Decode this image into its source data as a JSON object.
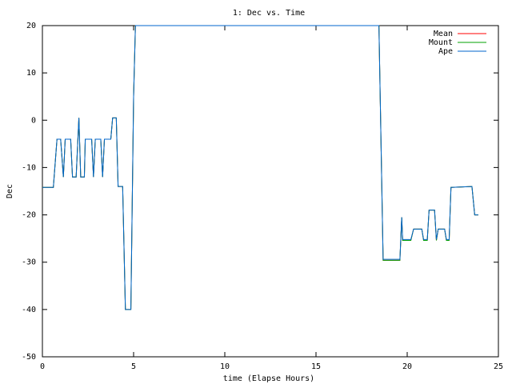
{
  "chart_data": {
    "type": "line",
    "title": "1: Dec vs. Time",
    "x_label": "time (Elapse Hours)",
    "y_label": "Dec",
    "x": [
      0,
      0.6,
      0.8,
      1.0,
      1.15,
      1.25,
      1.55,
      1.65,
      1.85,
      2.0,
      2.1,
      2.3,
      2.35,
      2.7,
      2.8,
      2.9,
      3.2,
      3.3,
      3.4,
      3.75,
      3.85,
      4.05,
      4.15,
      4.4,
      4.55,
      4.85,
      5.0,
      5.1,
      18.45,
      18.68,
      19.6,
      19.7,
      19.75,
      20.2,
      20.35,
      20.8,
      20.9,
      21.1,
      21.2,
      21.5,
      21.6,
      21.7,
      22.05,
      22.15,
      22.3,
      22.4,
      23.55,
      23.7,
      23.9
    ],
    "series": [
      {
        "name": "Mean",
        "color": "#ff0000",
        "values": [
          -14.2,
          -14.2,
          -4,
          -4,
          -12,
          -4,
          -4,
          -12,
          -12,
          0.5,
          -12,
          -12,
          -4,
          -4,
          -12,
          -4,
          -4,
          -12,
          -4,
          -4,
          0.5,
          0.5,
          -14,
          -14,
          -40,
          -40,
          5,
          20,
          20,
          -29.6,
          -29.6,
          -20.5,
          -25.4,
          -25.4,
          -23,
          -23,
          -25.4,
          -25.4,
          -19,
          -19,
          -25.4,
          -23,
          -23,
          -25.4,
          -25.4,
          -14.2,
          -14,
          -20,
          -20
        ]
      },
      {
        "name": "Mount",
        "color": "#00a000",
        "values": [
          -14.2,
          -14.2,
          -4,
          -4,
          -12,
          -4,
          -4,
          -12,
          -12,
          0.5,
          -12,
          -12,
          -4,
          -4,
          -12,
          -4,
          -4,
          -12,
          -4,
          -4,
          0.5,
          0.5,
          -14,
          -14,
          -40,
          -40,
          5,
          20,
          20,
          -29.6,
          -29.6,
          -20.5,
          -25.4,
          -25.4,
          -23,
          -23,
          -25.4,
          -25.4,
          -19,
          -19,
          -25.4,
          -23,
          -23,
          -25.4,
          -25.4,
          -14.2,
          -14,
          -20,
          -20
        ]
      },
      {
        "name": "Ape",
        "color": "#0066cc",
        "values": [
          -14.2,
          -14.2,
          -4,
          -4,
          -12,
          -4,
          -4,
          -12,
          -12,
          0.5,
          -12,
          -12,
          -4,
          -4,
          -12,
          -4,
          -4,
          -12,
          -4,
          -4,
          0.5,
          0.5,
          -14,
          -14,
          -40,
          -40,
          5,
          20,
          20,
          -29.4,
          -29.4,
          -20.5,
          -25.2,
          -25.2,
          -23,
          -23,
          -25.2,
          -25.2,
          -19,
          -19,
          -25.2,
          -23,
          -23,
          -25.2,
          -25.2,
          -14.2,
          -14,
          -20,
          -20
        ]
      }
    ],
    "xlim": [
      0,
      25
    ],
    "xticks": [
      0,
      5,
      10,
      15,
      20,
      25
    ],
    "ylim": [
      -50,
      20
    ],
    "yticks": [
      -50,
      -40,
      -30,
      -20,
      -10,
      0,
      10,
      20
    ],
    "legend": "top-right"
  }
}
